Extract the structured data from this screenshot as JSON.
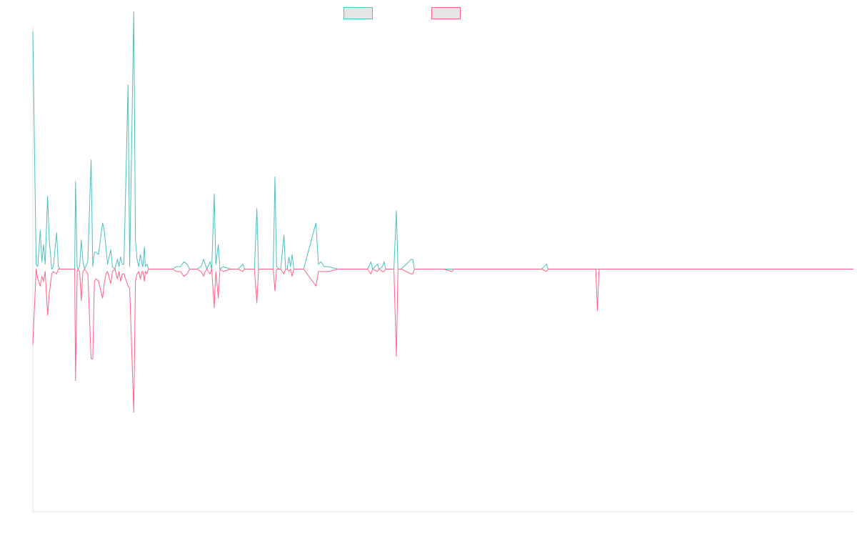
{
  "chart_data": {
    "type": "line",
    "title": "",
    "xlabel": "",
    "ylabel": "",
    "grid": false,
    "legend": "top-center",
    "x_range": [
      0,
      1000
    ],
    "ylim": [
      -100,
      100
    ],
    "series": [
      {
        "color": "#4bc0c0",
        "fill": "#e5e5e5",
        "points": [
          [
            0,
            98
          ],
          [
            4,
            2
          ],
          [
            6,
            1
          ],
          [
            9,
            16
          ],
          [
            11,
            3
          ],
          [
            13,
            10
          ],
          [
            15,
            2
          ],
          [
            18,
            30
          ],
          [
            20,
            12
          ],
          [
            23,
            0
          ],
          [
            25,
            1
          ],
          [
            29,
            15
          ],
          [
            31,
            1
          ],
          [
            33,
            0
          ],
          [
            45,
            0
          ],
          [
            51,
            0
          ],
          [
            52,
            36
          ],
          [
            54,
            1
          ],
          [
            55,
            0
          ],
          [
            57,
            1
          ],
          [
            59,
            12
          ],
          [
            61,
            3
          ],
          [
            63,
            0
          ],
          [
            67,
            3
          ],
          [
            71,
            45
          ],
          [
            73,
            1
          ],
          [
            75,
            7
          ],
          [
            77,
            7
          ],
          [
            80,
            6
          ],
          [
            85,
            19
          ],
          [
            87,
            16
          ],
          [
            89,
            9
          ],
          [
            91,
            2
          ],
          [
            95,
            8
          ],
          [
            97,
            1
          ],
          [
            100,
            0
          ],
          [
            103,
            4
          ],
          [
            105,
            1
          ],
          [
            107,
            5
          ],
          [
            109,
            2
          ],
          [
            111,
            2
          ],
          [
            116,
            76
          ],
          [
            118,
            1
          ],
          [
            123,
            106
          ],
          [
            125,
            12
          ],
          [
            127,
            4
          ],
          [
            129,
            1
          ],
          [
            131,
            6
          ],
          [
            133,
            2
          ],
          [
            134,
            1
          ],
          [
            136,
            9
          ],
          [
            137,
            1
          ],
          [
            139,
            2
          ],
          [
            141,
            0
          ],
          [
            152,
            0
          ],
          [
            167,
            0
          ],
          [
            170,
            0
          ],
          [
            175,
            1
          ],
          [
            180,
            1
          ],
          [
            184,
            3
          ],
          [
            188,
            2
          ],
          [
            191,
            0
          ],
          [
            200,
            0
          ],
          [
            205,
            1
          ],
          [
            208,
            4
          ],
          [
            210,
            2
          ],
          [
            212,
            0
          ],
          [
            216,
            3
          ],
          [
            218,
            0
          ],
          [
            221,
            31
          ],
          [
            223,
            2
          ],
          [
            226,
            10
          ],
          [
            228,
            0
          ],
          [
            232,
            1
          ],
          [
            241,
            0
          ],
          [
            250,
            0
          ],
          [
            256,
            2
          ],
          [
            258,
            0
          ],
          [
            270,
            0
          ],
          [
            273,
            25
          ],
          [
            275,
            0
          ],
          [
            277,
            0
          ],
          [
            282,
            0
          ],
          [
            287,
            0
          ],
          [
            293,
            0
          ],
          [
            295,
            38
          ],
          [
            297,
            1
          ],
          [
            300,
            0
          ],
          [
            302,
            0
          ],
          [
            306,
            14
          ],
          [
            308,
            0
          ],
          [
            310,
            0
          ],
          [
            312,
            5
          ],
          [
            314,
            1
          ],
          [
            316,
            6
          ],
          [
            318,
            0
          ],
          [
            330,
            0
          ],
          [
            345,
            19
          ],
          [
            348,
            2
          ],
          [
            351,
            3
          ],
          [
            355,
            1
          ],
          [
            360,
            1
          ],
          [
            372,
            0
          ],
          [
            400,
            0
          ],
          [
            402,
            0
          ],
          [
            404,
            0
          ],
          [
            406,
            0
          ],
          [
            408,
            0
          ],
          [
            412,
            3
          ],
          [
            414,
            0
          ],
          [
            420,
            2
          ],
          [
            422,
            0
          ],
          [
            426,
            1
          ],
          [
            428,
            3
          ],
          [
            430,
            0
          ],
          [
            440,
            0
          ],
          [
            443,
            24
          ],
          [
            445,
            0
          ],
          [
            449,
            0
          ],
          [
            461,
            4
          ],
          [
            463,
            4
          ],
          [
            465,
            0
          ],
          [
            470,
            0
          ],
          [
            476,
            0
          ],
          [
            479,
            0
          ],
          [
            488,
            0
          ],
          [
            495,
            0
          ],
          [
            500,
            0
          ],
          [
            511,
            0
          ],
          [
            513,
            0
          ],
          [
            600,
            0
          ],
          [
            617,
            0
          ],
          [
            620,
            0
          ],
          [
            626,
            2
          ],
          [
            628,
            0
          ],
          [
            634,
            0
          ],
          [
            640,
            0
          ],
          [
            645,
            0
          ],
          [
            650,
            0
          ],
          [
            684,
            0
          ],
          [
            686,
            0
          ],
          [
            688,
            0
          ],
          [
            690,
            0
          ],
          [
            700,
            0
          ],
          [
            800,
            0
          ],
          [
            900,
            0
          ],
          [
            1000,
            0
          ]
        ]
      },
      {
        "color": "#ff6384",
        "fill": "#e5e5e5",
        "points": [
          [
            0,
            -31
          ],
          [
            4,
            0
          ],
          [
            6,
            -4
          ],
          [
            9,
            -7
          ],
          [
            11,
            -3
          ],
          [
            13,
            -5
          ],
          [
            15,
            -1
          ],
          [
            18,
            -19
          ],
          [
            20,
            -10
          ],
          [
            23,
            -2
          ],
          [
            25,
            -1
          ],
          [
            29,
            -2
          ],
          [
            31,
            0
          ],
          [
            33,
            0
          ],
          [
            45,
            0
          ],
          [
            51,
            0
          ],
          [
            52,
            -46
          ],
          [
            54,
            -1
          ],
          [
            55,
            0
          ],
          [
            57,
            -1
          ],
          [
            59,
            -13
          ],
          [
            61,
            -1
          ],
          [
            63,
            0
          ],
          [
            67,
            -2
          ],
          [
            71,
            -37
          ],
          [
            73,
            -37
          ],
          [
            75,
            -5
          ],
          [
            77,
            -4
          ],
          [
            80,
            -5
          ],
          [
            85,
            -12
          ],
          [
            87,
            -6
          ],
          [
            89,
            -2
          ],
          [
            91,
            -1
          ],
          [
            95,
            -6
          ],
          [
            97,
            -1
          ],
          [
            100,
            0
          ],
          [
            103,
            -4
          ],
          [
            105,
            -1
          ],
          [
            107,
            -5
          ],
          [
            109,
            -2
          ],
          [
            111,
            -2
          ],
          [
            116,
            -7
          ],
          [
            118,
            -8
          ],
          [
            123,
            -59
          ],
          [
            125,
            -5
          ],
          [
            127,
            -2
          ],
          [
            129,
            -1
          ],
          [
            131,
            -4
          ],
          [
            133,
            -1
          ],
          [
            134,
            -1
          ],
          [
            136,
            -5
          ],
          [
            137,
            -1
          ],
          [
            139,
            -2
          ],
          [
            141,
            0
          ],
          [
            152,
            0
          ],
          [
            167,
            0
          ],
          [
            170,
            0
          ],
          [
            175,
            -1
          ],
          [
            180,
            -1
          ],
          [
            184,
            -3
          ],
          [
            188,
            -2
          ],
          [
            191,
            0
          ],
          [
            200,
            0
          ],
          [
            205,
            -1
          ],
          [
            208,
            -3
          ],
          [
            210,
            -1
          ],
          [
            212,
            0
          ],
          [
            216,
            -2
          ],
          [
            218,
            0
          ],
          [
            221,
            -16
          ],
          [
            223,
            -1
          ],
          [
            226,
            -12
          ],
          [
            228,
            0
          ],
          [
            232,
            -1
          ],
          [
            241,
            0
          ],
          [
            250,
            0
          ],
          [
            256,
            -1
          ],
          [
            258,
            0
          ],
          [
            270,
            0
          ],
          [
            273,
            -14
          ],
          [
            275,
            0
          ],
          [
            277,
            0
          ],
          [
            282,
            0
          ],
          [
            287,
            0
          ],
          [
            293,
            0
          ],
          [
            295,
            -9
          ],
          [
            297,
            0
          ],
          [
            300,
            0
          ],
          [
            302,
            0
          ],
          [
            306,
            -2
          ],
          [
            308,
            0
          ],
          [
            310,
            0
          ],
          [
            312,
            -1
          ],
          [
            314,
            0
          ],
          [
            316,
            -3
          ],
          [
            318,
            0
          ],
          [
            330,
            0
          ],
          [
            345,
            -7
          ],
          [
            348,
            -1
          ],
          [
            351,
            -1
          ],
          [
            355,
            -1
          ],
          [
            360,
            -1
          ],
          [
            372,
            0
          ],
          [
            400,
            0
          ],
          [
            402,
            0
          ],
          [
            404,
            0
          ],
          [
            406,
            0
          ],
          [
            408,
            0
          ],
          [
            412,
            -2
          ],
          [
            414,
            0
          ],
          [
            420,
            -1
          ],
          [
            422,
            0
          ],
          [
            426,
            -1
          ],
          [
            428,
            -1
          ],
          [
            430,
            0
          ],
          [
            440,
            0
          ],
          [
            443,
            -36
          ],
          [
            445,
            0
          ],
          [
            449,
            0
          ],
          [
            461,
            -2
          ],
          [
            463,
            -2
          ],
          [
            465,
            0
          ],
          [
            470,
            0
          ],
          [
            476,
            0
          ],
          [
            479,
            0
          ],
          [
            488,
            0
          ],
          [
            495,
            0
          ],
          [
            500,
            0
          ],
          [
            511,
            -1
          ],
          [
            513,
            0
          ],
          [
            600,
            0
          ],
          [
            617,
            0
          ],
          [
            620,
            0
          ],
          [
            626,
            -1
          ],
          [
            628,
            0
          ],
          [
            634,
            0
          ],
          [
            640,
            0
          ],
          [
            645,
            0
          ],
          [
            650,
            0
          ],
          [
            684,
            0
          ],
          [
            686,
            0
          ],
          [
            688,
            -17
          ],
          [
            690,
            0
          ],
          [
            700,
            0
          ],
          [
            800,
            0
          ],
          [
            900,
            0
          ],
          [
            1000,
            0
          ]
        ]
      }
    ]
  }
}
